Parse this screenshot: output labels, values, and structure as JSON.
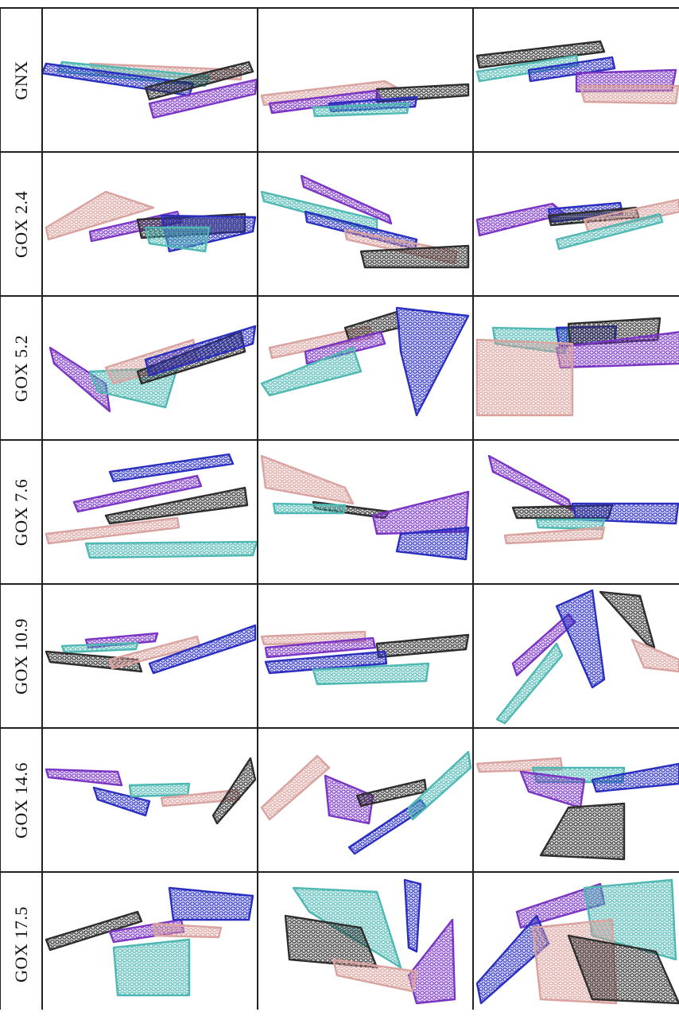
{
  "figure": {
    "rows": [
      {
        "label": "GNX"
      },
      {
        "label": "GOX 2.4"
      },
      {
        "label": "GOX 5.2"
      },
      {
        "label": "GOX 7.6"
      },
      {
        "label": "GOX 10.9"
      },
      {
        "label": "GOX 14.6"
      },
      {
        "label": "GOX 17.5"
      }
    ],
    "sheet_colors": {
      "pink": "#d9a39f",
      "teal": "#4fb8b3",
      "blue": "#2a2fc0",
      "purple": "#7a35c4",
      "black": "#2e2e2e"
    }
  }
}
